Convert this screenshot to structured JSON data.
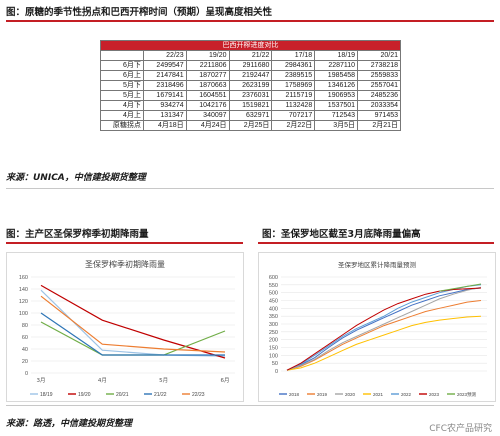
{
  "section1": {
    "title": "图：原糖的季节性拐点和巴西开榨时间（预期）呈现高度相关性",
    "table_title": "巴西开榨进度对比",
    "columns": [
      "22/23",
      "19/20",
      "21/22",
      "17/18",
      "18/19",
      "20/21"
    ],
    "rows": [
      {
        "label": "6月下",
        "values": [
          "2499547",
          "2211806",
          "2911680",
          "2984361",
          "2287110",
          "2738218"
        ]
      },
      {
        "label": "6月上",
        "values": [
          "2147841",
          "1870277",
          "2192447",
          "2389515",
          "1985458",
          "2559833"
        ]
      },
      {
        "label": "5月下",
        "values": [
          "2318496",
          "1870663",
          "2623199",
          "1758969",
          "1346126",
          "2557041"
        ]
      },
      {
        "label": "5月上",
        "values": [
          "1679141",
          "1604551",
          "2376031",
          "2115719",
          "1906953",
          "2485236"
        ]
      },
      {
        "label": "4月下",
        "values": [
          "934274",
          "1042176",
          "1519821",
          "1132428",
          "1537501",
          "2033354"
        ]
      },
      {
        "label": "4月上",
        "values": [
          "131347",
          "340097",
          "632971",
          "707217",
          "712543",
          "971453"
        ]
      },
      {
        "label": "原糖拐点",
        "values": [
          "4月18日",
          "4月24日",
          "2月25日",
          "2月22日",
          "3月5日",
          "2月21日"
        ]
      }
    ],
    "source": "来源：UNICA，中信建投期货整理"
  },
  "section2": {
    "title_left": "图：主产区圣保罗榨季初期降雨量",
    "title_right": "图：圣保罗地区截至3月底降雨量偏高",
    "source": "来源：路透，中信建投期货整理",
    "watermark": "CFC农产品研究"
  },
  "chart_data": [
    {
      "type": "line",
      "title": "圣保罗榨季初期降雨量",
      "categories": [
        "3月",
        "4月",
        "5月",
        "6月"
      ],
      "ylim": [
        0,
        160
      ],
      "yticks": [
        0,
        20,
        40,
        60,
        80,
        100,
        120,
        140,
        160
      ],
      "legend": "bottom",
      "grid": true,
      "series": [
        {
          "name": "18/19",
          "color": "#9dc3e6",
          "values": [
            138,
            38,
            30,
            28
          ]
        },
        {
          "name": "19/20",
          "color": "#c00000",
          "values": [
            146,
            88,
            55,
            25
          ]
        },
        {
          "name": "20/21",
          "color": "#70ad47",
          "values": [
            85,
            30,
            30,
            70
          ]
        },
        {
          "name": "21/22",
          "color": "#2e75b6",
          "values": [
            100,
            30,
            30,
            30
          ]
        },
        {
          "name": "22/23",
          "color": "#ed7d31",
          "values": [
            128,
            48,
            40,
            35
          ]
        }
      ]
    },
    {
      "type": "line",
      "title": "圣保罗地区累计降雨量预测",
      "ylim": [
        0,
        600
      ],
      "yticks": [
        0,
        50,
        100,
        150,
        200,
        250,
        300,
        350,
        400,
        450,
        500,
        550,
        600
      ],
      "legend": "bottom",
      "grid": true,
      "series": [
        {
          "name": "2018",
          "color": "#4472c4",
          "values": [
            5,
            40,
            85,
            150,
            210,
            260,
            300,
            340,
            380,
            420,
            450,
            480,
            500,
            520,
            530
          ]
        },
        {
          "name": "2019",
          "color": "#ed7d31",
          "values": [
            5,
            30,
            70,
            120,
            170,
            210,
            250,
            290,
            320,
            350,
            380,
            400,
            420,
            440,
            450
          ]
        },
        {
          "name": "2020",
          "color": "#a5a5a5",
          "values": [
            5,
            35,
            75,
            130,
            180,
            220,
            260,
            300,
            340,
            380,
            420,
            460,
            490,
            515,
            535
          ]
        },
        {
          "name": "2021",
          "color": "#ffc000",
          "values": [
            5,
            20,
            50,
            90,
            130,
            170,
            200,
            230,
            260,
            290,
            310,
            325,
            335,
            345,
            350
          ]
        },
        {
          "name": "2022",
          "color": "#5b9bd5",
          "values": [
            5,
            45,
            100,
            160,
            220,
            270,
            310,
            350,
            400,
            440,
            470,
            500,
            520,
            540,
            550
          ]
        },
        {
          "name": "2023",
          "color": "#c00000",
          "values": [
            5,
            50,
            110,
            170,
            230,
            290,
            340,
            390,
            430,
            460,
            490,
            510,
            520,
            525,
            530
          ]
        },
        {
          "name": "2023预测",
          "color": "#70ad47",
          "values": [
            null,
            null,
            null,
            null,
            null,
            null,
            null,
            null,
            null,
            null,
            null,
            510,
            525,
            540,
            555
          ]
        }
      ]
    }
  ]
}
